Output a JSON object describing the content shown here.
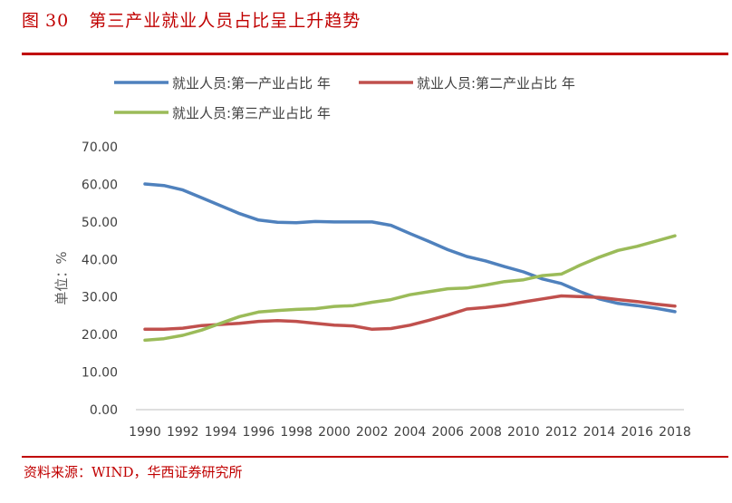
{
  "header": {
    "figure_label": "图",
    "figure_number": "30",
    "title": "第三产业就业人员占比呈上升趋势"
  },
  "footer": {
    "source": "资料来源：WIND，华西证券研究所"
  },
  "chart_data": {
    "type": "line",
    "ylabel": "单位：%",
    "ylim": [
      0,
      70
    ],
    "yticks": [
      "0.00",
      "10.00",
      "20.00",
      "30.00",
      "40.00",
      "50.00",
      "60.00",
      "70.00"
    ],
    "xticks": [
      "1990",
      "1992",
      "1994",
      "1996",
      "1998",
      "2000",
      "2002",
      "2004",
      "2006",
      "2008",
      "2010",
      "2012",
      "2014",
      "2016",
      "2018"
    ],
    "x": [
      1990,
      1991,
      1992,
      1993,
      1994,
      1995,
      1996,
      1997,
      1998,
      1999,
      2000,
      2001,
      2002,
      2003,
      2004,
      2005,
      2006,
      2007,
      2008,
      2009,
      2010,
      2011,
      2012,
      2013,
      2014,
      2015,
      2016,
      2017,
      2018
    ],
    "legend_position": "top",
    "series": [
      {
        "name": "就业人员:第一产业占比 年",
        "color": "#4f81bd",
        "values": [
          60.1,
          59.7,
          58.5,
          56.4,
          54.3,
          52.2,
          50.5,
          49.9,
          49.8,
          50.1,
          50.0,
          50.0,
          50.0,
          49.1,
          46.9,
          44.8,
          42.6,
          40.8,
          39.6,
          38.1,
          36.7,
          34.8,
          33.6,
          31.4,
          29.5,
          28.3,
          27.7,
          27.0,
          26.1
        ]
      },
      {
        "name": "就业人员:第二产业占比 年",
        "color": "#c0504d",
        "values": [
          21.4,
          21.4,
          21.7,
          22.4,
          22.7,
          23.0,
          23.5,
          23.7,
          23.5,
          23.0,
          22.5,
          22.3,
          21.4,
          21.6,
          22.5,
          23.8,
          25.2,
          26.8,
          27.2,
          27.8,
          28.7,
          29.5,
          30.3,
          30.1,
          29.9,
          29.3,
          28.8,
          28.1,
          27.6
        ]
      },
      {
        "name": "就业人员:第三产业占比 年",
        "color": "#9bbb59",
        "values": [
          18.5,
          18.9,
          19.8,
          21.2,
          23.0,
          24.8,
          26.0,
          26.4,
          26.7,
          26.9,
          27.5,
          27.7,
          28.6,
          29.3,
          30.6,
          31.4,
          32.2,
          32.4,
          33.2,
          34.1,
          34.6,
          35.7,
          36.1,
          38.5,
          40.6,
          42.4,
          43.5,
          44.9,
          46.3
        ]
      }
    ]
  }
}
